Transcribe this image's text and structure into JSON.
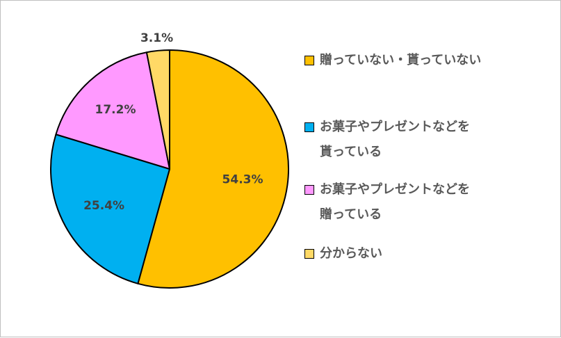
{
  "chart_data": {
    "type": "pie",
    "title": "",
    "start_angle_deg": 0,
    "direction": "clockwise",
    "legend_position": "right",
    "slices": [
      {
        "label": "贈っていない・貰っていない",
        "value": 54.3,
        "value_label": "54.3%",
        "color": "#FFC000"
      },
      {
        "label": "お菓子やプレゼントなどを\n貰っている",
        "value": 25.4,
        "value_label": "25.4%",
        "color": "#00B0F0"
      },
      {
        "label": "お菓子やプレゼントなどを\n贈っている",
        "value": 17.2,
        "value_label": "17.2%",
        "color": "#FF99FF"
      },
      {
        "label": "分からない",
        "value": 3.1,
        "value_label": "3.1%",
        "color": "#FFD966"
      }
    ]
  }
}
